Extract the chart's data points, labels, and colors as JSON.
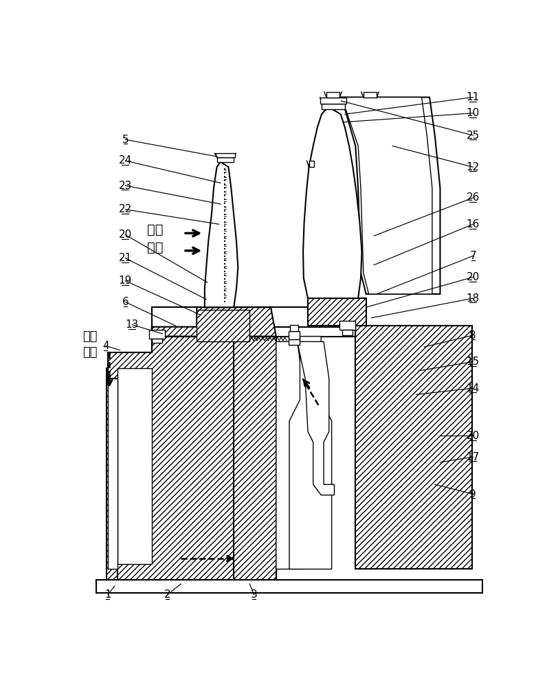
{
  "bg_color": "#ffffff",
  "lc": "#000000",
  "hatch": "////",
  "text_gawen": "高温",
  "text_zhuliu": "主流",
  "text_lenque": "冷却",
  "text_qiliu": "气流",
  "labels_left": [
    [
      "5",
      105,
      108
    ],
    [
      "24",
      105,
      148
    ],
    [
      "23",
      105,
      198
    ],
    [
      "22",
      105,
      242
    ],
    [
      "20",
      105,
      295
    ],
    [
      "21",
      105,
      335
    ],
    [
      "19",
      105,
      378
    ],
    [
      "6",
      105,
      418
    ],
    [
      "13",
      118,
      460
    ],
    [
      "4",
      68,
      500
    ]
  ],
  "labels_right": [
    [
      "11",
      762,
      28
    ],
    [
      "10",
      762,
      58
    ],
    [
      "25",
      762,
      100
    ],
    [
      "12",
      762,
      160
    ],
    [
      "26",
      762,
      218
    ],
    [
      "16",
      762,
      270
    ],
    [
      "7",
      762,
      330
    ],
    [
      "20",
      762,
      368
    ],
    [
      "18",
      762,
      408
    ],
    [
      "8",
      762,
      478
    ],
    [
      "15",
      762,
      530
    ],
    [
      "14",
      762,
      580
    ],
    [
      "20",
      762,
      670
    ],
    [
      "17",
      762,
      710
    ],
    [
      "9",
      762,
      780
    ]
  ],
  "labels_bottom": [
    [
      "1",
      72,
      970
    ],
    [
      "2",
      185,
      970
    ],
    [
      "3",
      348,
      970
    ]
  ]
}
